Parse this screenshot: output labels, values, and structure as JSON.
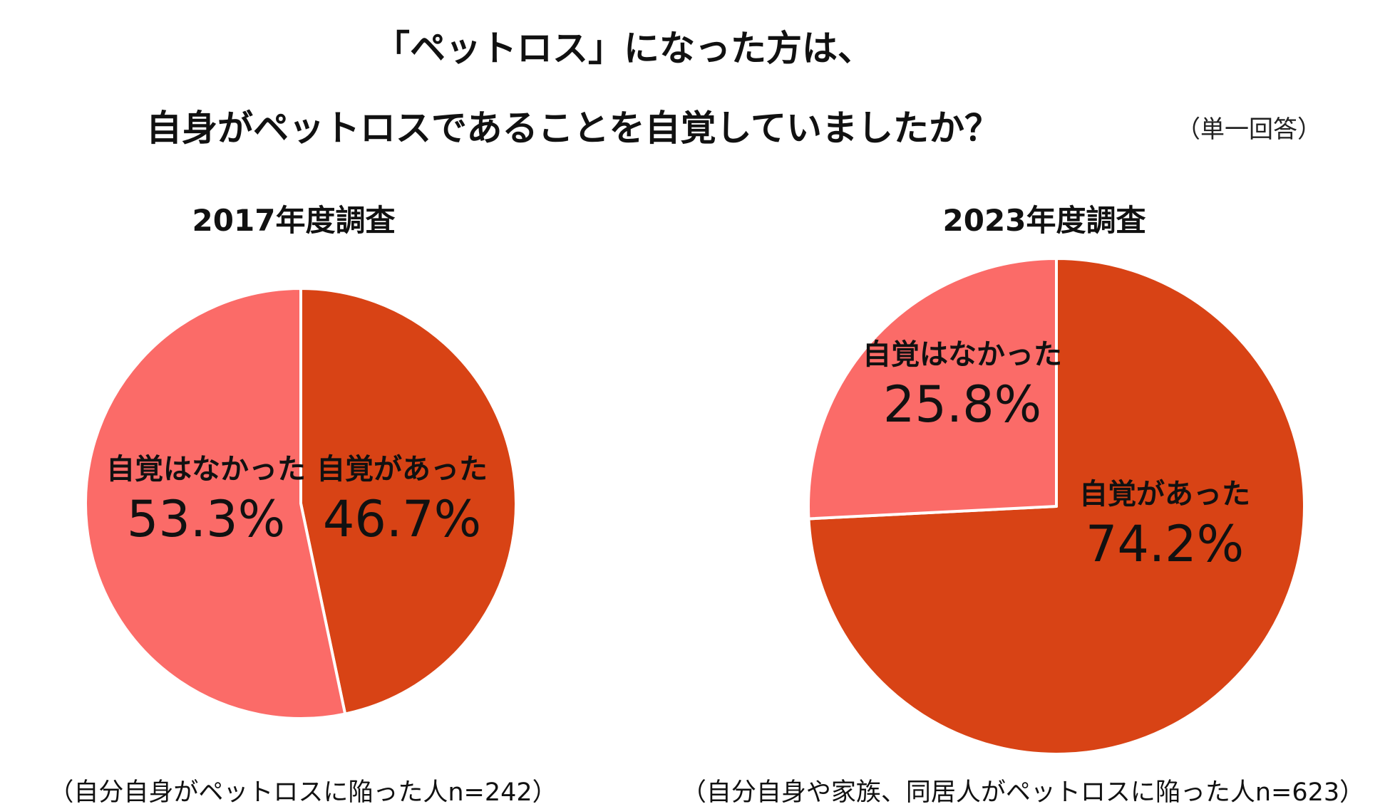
{
  "title": {
    "line1": "「ペットロス」になった方は、",
    "line2": "自身がペットロスであることを自覚していましたか？",
    "answer_type": "（単一回答）"
  },
  "chart_data": [
    {
      "type": "pie",
      "title": "2017年度調査",
      "note": "（自分自身がペットロスに陥った人n=242）",
      "slices": [
        {
          "label": "自覚があった",
          "value": 46.7,
          "value_label": "46.7%",
          "color": "#d84315"
        },
        {
          "label": "自覚はなかった",
          "value": 53.3,
          "value_label": "53.3%",
          "color": "#fb6b68"
        }
      ]
    },
    {
      "type": "pie",
      "title": "2023年度調査",
      "note": "（自分自身や家族、同居人がペットロスに陥った人n=623）",
      "slices": [
        {
          "label": "自覚があった",
          "value": 74.2,
          "value_label": "74.2%",
          "color": "#d84315"
        },
        {
          "label": "自覚はなかった",
          "value": 25.8,
          "value_label": "25.8%",
          "color": "#fb6b68"
        }
      ]
    }
  ]
}
